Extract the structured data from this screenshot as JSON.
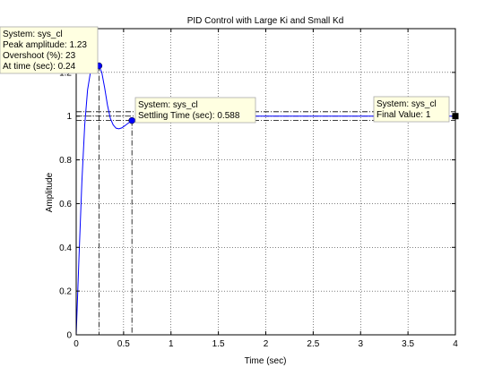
{
  "chart_data": {
    "type": "line",
    "title": "PID Control with Large Ki and Small Kd",
    "xlabel": "Time (sec)",
    "ylabel": "Amplitude",
    "xlim": [
      0,
      4
    ],
    "ylim": [
      0,
      1.4
    ],
    "grid": true,
    "xticks": [
      0,
      0.5,
      1,
      1.5,
      2,
      2.5,
      3,
      3.5,
      4
    ],
    "xtick_labels": [
      "0",
      "0.5",
      "1",
      "1.5",
      "2",
      "2.5",
      "3",
      "3.5",
      "4"
    ],
    "yticks": [
      0,
      0.2,
      0.4,
      0.6,
      0.8,
      1,
      1.2
    ],
    "ytick_labels": [
      "0",
      "0.2",
      "0.4",
      "0.6",
      "0.8",
      "1",
      "1.2"
    ],
    "series": [
      {
        "color": "#0000ff",
        "x": [
          0,
          0.03,
          0.06,
          0.09,
          0.12,
          0.15,
          0.18,
          0.21,
          0.24,
          0.27,
          0.3,
          0.33,
          0.36,
          0.39,
          0.42,
          0.45,
          0.48,
          0.51,
          0.54,
          0.588,
          0.65,
          0.75,
          0.9,
          1.1,
          1.4,
          1.8,
          2.2,
          2.6,
          3.0,
          3.4,
          3.8,
          4.0
        ],
        "y": [
          0,
          0.36,
          0.7,
          0.96,
          1.12,
          1.2,
          1.225,
          1.232,
          1.23,
          1.2,
          1.13,
          1.05,
          0.99,
          0.96,
          0.945,
          0.942,
          0.946,
          0.955,
          0.965,
          0.98,
          0.99,
          0.995,
          0.997,
          0.998,
          0.999,
          1.0,
          1.0,
          1.0,
          1.0,
          1.0,
          1.0,
          1.0
        ]
      }
    ],
    "reference_lines": {
      "peak_y": 1.23,
      "peak_x": 0.24,
      "settling_x": 0.588,
      "band_upper": 1.02,
      "band_lower": 0.98,
      "final_value": 1
    },
    "datatips": [
      {
        "lines": [
          "System: sys_cl",
          "Peak amplitude: 1.23",
          "Overshoot (%): 23",
          "At time (sec): 0.24"
        ],
        "marker_x": 0.24,
        "marker_y": 1.23
      },
      {
        "lines": [
          "System: sys_cl",
          "Settling Time (sec): 0.588"
        ],
        "marker_x": 0.588,
        "marker_y": 0.98
      },
      {
        "lines": [
          "System: sys_cl",
          "Final Value: 1"
        ],
        "marker_x": 4,
        "marker_y": 1
      }
    ]
  }
}
